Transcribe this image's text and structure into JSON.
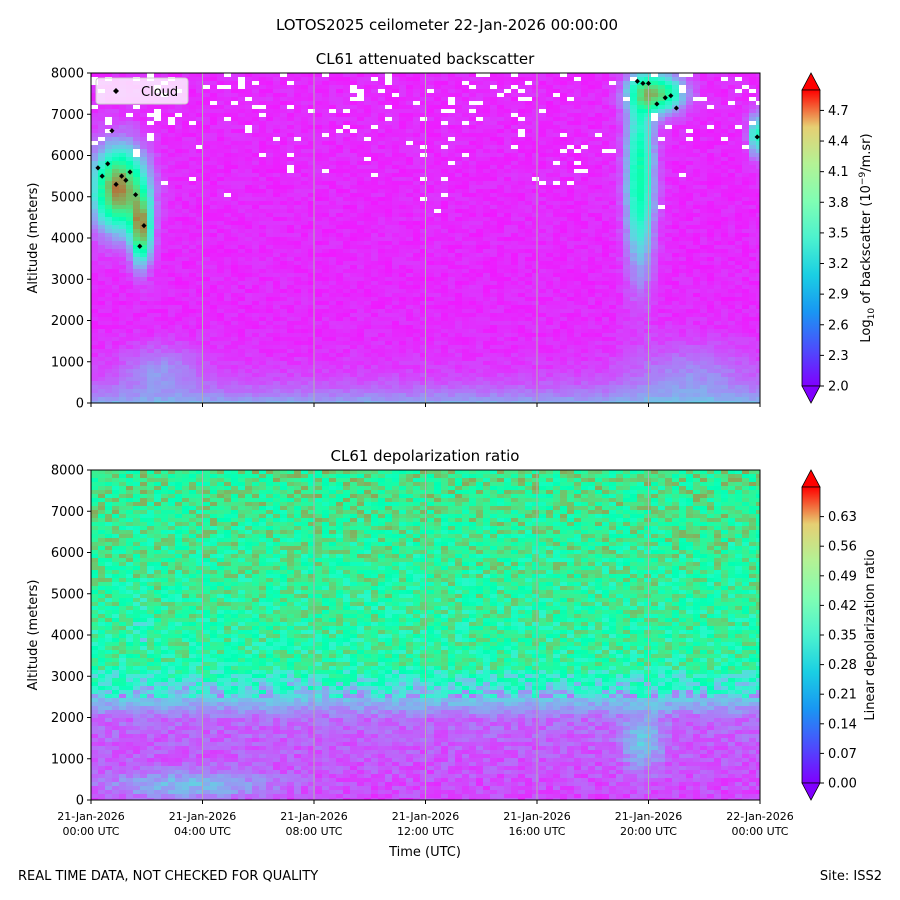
{
  "figure": {
    "suptitle": "LOTOS2025 ceilometer 22-Jan-2026 00:00:00",
    "footer_left": "REAL TIME DATA, NOT CHECKED FOR QUALITY",
    "footer_right": "Site: ISS2"
  },
  "chart_data": [
    {
      "type": "heatmap",
      "title": "CL61 attenuated backscatter",
      "ylabel": "Altitude (meters)",
      "xlabel": "",
      "ylim": [
        0,
        8000
      ],
      "yticks": [
        "0",
        "1000",
        "2000",
        "3000",
        "4000",
        "5000",
        "6000",
        "7000",
        "8000"
      ],
      "xlim_hours": [
        0,
        24
      ],
      "xticks_hours": [
        0,
        4,
        8,
        12,
        16,
        20,
        24
      ],
      "xtick_labels_shown": false,
      "grid": "vertical lines at x ticks",
      "colormap": "rainbow",
      "colorbar": {
        "label": "Log10 of backscatter (10^-9/m.sr)",
        "label_parts": {
          "pre": "Log",
          "sub": "10",
          "mid": " of backscatter (10",
          "sup": "−9",
          "post": "/m.sr)"
        },
        "range": [
          2.0,
          4.9
        ],
        "extend": "both",
        "ticks": [
          "2.0",
          "2.3",
          "2.6",
          "2.9",
          "3.2",
          "3.5",
          "3.8",
          "4.1",
          "4.4",
          "4.7"
        ]
      },
      "legend": {
        "location": "upper-left",
        "entries": [
          "Cloud"
        ]
      },
      "cloud_points": [
        {
          "t": 0.25,
          "alt": 5700
        },
        {
          "t": 0.4,
          "alt": 5500
        },
        {
          "t": 0.6,
          "alt": 5800
        },
        {
          "t": 0.75,
          "alt": 6600
        },
        {
          "t": 0.9,
          "alt": 5300
        },
        {
          "t": 1.1,
          "alt": 5500
        },
        {
          "t": 1.25,
          "alt": 5400
        },
        {
          "t": 1.4,
          "alt": 5600
        },
        {
          "t": 1.6,
          "alt": 5050
        },
        {
          "t": 1.75,
          "alt": 3800
        },
        {
          "t": 1.9,
          "alt": 4300
        },
        {
          "t": 19.6,
          "alt": 7800
        },
        {
          "t": 19.8,
          "alt": 7750
        },
        {
          "t": 20.0,
          "alt": 7750
        },
        {
          "t": 20.3,
          "alt": 7250
        },
        {
          "t": 20.6,
          "alt": 7400
        },
        {
          "t": 20.8,
          "alt": 7450
        },
        {
          "t": 21.0,
          "alt": 7150
        },
        {
          "t": 23.9,
          "alt": 6450
        }
      ]
    },
    {
      "type": "heatmap",
      "title": "CL61 depolarization ratio",
      "ylabel": "Altitude (meters)",
      "xlabel": "Time (UTC)",
      "ylim": [
        0,
        8000
      ],
      "yticks": [
        "0",
        "1000",
        "2000",
        "3000",
        "4000",
        "5000",
        "6000",
        "7000",
        "8000"
      ],
      "xlim_hours": [
        0,
        24
      ],
      "xticks_hours": [
        0,
        4,
        8,
        12,
        16,
        20,
        24
      ],
      "xtick_labels": [
        [
          "21-Jan-2026",
          "00:00 UTC"
        ],
        [
          "21-Jan-2026",
          "04:00 UTC"
        ],
        [
          "21-Jan-2026",
          "08:00 UTC"
        ],
        [
          "21-Jan-2026",
          "12:00 UTC"
        ],
        [
          "21-Jan-2026",
          "16:00 UTC"
        ],
        [
          "21-Jan-2026",
          "20:00 UTC"
        ],
        [
          "22-Jan-2026",
          "00:00 UTC"
        ]
      ],
      "grid": "vertical lines at x ticks",
      "colormap": "rainbow",
      "colorbar": {
        "label": "Linear depolarization ratio",
        "range": [
          0.0,
          0.7
        ],
        "extend": "both",
        "ticks": [
          "0.00",
          "0.07",
          "0.14",
          "0.21",
          "0.28",
          "0.35",
          "0.42",
          "0.49",
          "0.56",
          "0.63"
        ]
      }
    }
  ]
}
